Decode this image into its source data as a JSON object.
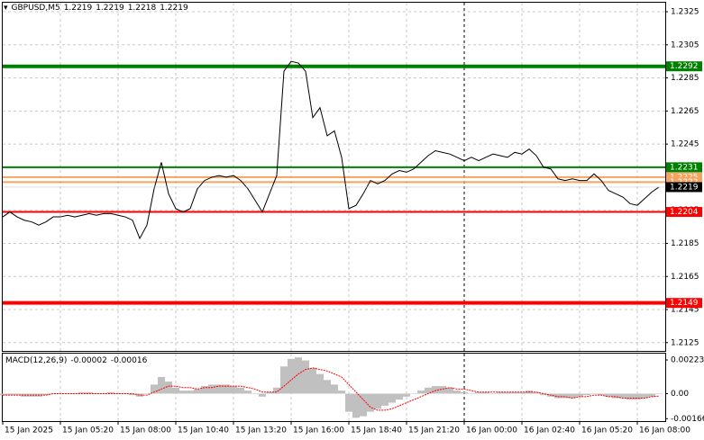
{
  "chart_data": [
    {
      "type": "line",
      "title": "GBPUSD,M5",
      "ohlc": [
        1.2219,
        1.2219,
        1.2218,
        1.2219
      ],
      "color": "#000000",
      "categories": [
        "15 Jan 2025",
        null,
        null,
        null,
        null,
        null,
        null,
        null,
        "15 Jan 05:20",
        null,
        null,
        null,
        null,
        null,
        null,
        null,
        "15 Jan 08:00",
        null,
        null,
        null,
        null,
        null,
        null,
        null,
        "15 Jan 10:40",
        null,
        null,
        null,
        null,
        null,
        null,
        null,
        "15 Jan 13:20",
        null,
        null,
        null,
        null,
        null,
        null,
        null,
        "15 Jan 16:00",
        null,
        null,
        null,
        null,
        null,
        null,
        null,
        "15 Jan 18:40",
        null,
        null,
        null,
        null,
        null,
        null,
        null,
        "15 Jan 21:20",
        null,
        null,
        null,
        null,
        null,
        null,
        null,
        "16 Jan 00:00",
        null,
        null,
        null,
        null,
        null,
        null,
        null,
        "16 Jan 02:40",
        null,
        null,
        null,
        null,
        null,
        null,
        null,
        "16 Jan 05:20",
        null,
        null,
        null,
        null,
        null,
        null,
        null,
        "16 Jan 08:00",
        null,
        null,
        null
      ],
      "values": [
        1.2201,
        1.2204,
        1.2201,
        1.2199,
        1.2198,
        1.2196,
        1.2198,
        1.2201,
        1.2201,
        1.2202,
        1.2201,
        1.2202,
        1.2203,
        1.2202,
        1.2203,
        1.2203,
        1.2202,
        1.2201,
        1.2199,
        1.2188,
        1.2196,
        1.2218,
        1.2234,
        1.2215,
        1.2206,
        1.2204,
        1.2206,
        1.2218,
        1.2223,
        1.2225,
        1.2226,
        1.2225,
        1.2226,
        1.2223,
        1.2218,
        1.2211,
        1.2204,
        1.2215,
        1.2226,
        1.2289,
        1.2295,
        1.2294,
        1.2289,
        1.2261,
        1.2267,
        1.225,
        1.2253,
        1.2237,
        1.2206,
        1.2208,
        1.2215,
        1.2223,
        1.2221,
        1.2223,
        1.2227,
        1.2229,
        1.2228,
        1.223,
        1.2234,
        1.2238,
        1.2241,
        1.224,
        1.2239,
        1.2237,
        1.2235,
        1.2237,
        1.2235,
        1.2237,
        1.2239,
        1.2238,
        1.2237,
        1.224,
        1.2239,
        1.2242,
        1.2238,
        1.2231,
        1.223,
        1.2224,
        1.2223,
        1.2224,
        1.2223,
        1.2223,
        1.2227,
        1.2223,
        1.2217,
        1.2215,
        1.2213,
        1.2209,
        1.2208,
        1.2212,
        1.2216,
        1.2219
      ],
      "ylim": [
        1.212,
        1.2331
      ],
      "yticks": [
        1.2325,
        1.2305,
        1.2285,
        1.2265,
        1.2245,
        1.2225,
        1.2205,
        1.2185,
        1.2165,
        1.2145,
        1.2125
      ],
      "grid": true,
      "period_separators": true,
      "levels": [
        {
          "value": 1.2292,
          "color": "#008000"
        },
        {
          "value": 1.2231,
          "color": "#008000"
        },
        {
          "value": 1.2225,
          "color": "#f4a460"
        },
        {
          "value": 1.2222,
          "color": "#f4a460"
        },
        {
          "value": 1.2204,
          "color": "#ff0000"
        },
        {
          "value": 1.2149,
          "color": "#ff0000"
        }
      ],
      "last_price": 1.2219
    },
    {
      "type": "macd",
      "title": "MACD(12,26,9)",
      "readout": [
        -2e-05,
        -0.00016
      ],
      "histogram_color": "#c0c0c0",
      "signal_color": "#ff0000",
      "histogram": [
        -0.0001,
        -0.0001,
        -0.0001,
        -0.0002,
        -0.0002,
        -0.0002,
        -0.0001,
        0,
        0,
        0,
        0,
        0.0001,
        0.0001,
        0,
        0,
        0.0001,
        0,
        0,
        -0.0001,
        -0.0002,
        0,
        0.0006,
        0.0011,
        0.0008,
        0.0004,
        0.0002,
        0.0002,
        0.0003,
        0.0005,
        0.0006,
        0.0006,
        0.0006,
        0.0005,
        0.0004,
        0.0002,
        0,
        -0.0002,
        0.0001,
        0.0004,
        0.0018,
        0.0023,
        0.0024,
        0.0022,
        0.0017,
        0.0013,
        0.0009,
        0.0006,
        0.0002,
        -0.0012,
        -0.0016,
        -0.0015,
        -0.0012,
        -0.001,
        -0.0008,
        -0.0006,
        -0.0004,
        -0.0002,
        0,
        0.0002,
        0.0004,
        0.0005,
        0.0005,
        0.0004,
        0.0002,
        0.0001,
        0,
        0.0001,
        0.0001,
        0,
        0.0001,
        0.0001,
        0.0001,
        0.0001,
        0.0002,
        0.0001,
        -0.0001,
        -0.0002,
        -0.0003,
        -0.0003,
        -0.0003,
        -0.0002,
        -0.0001,
        0,
        -0.0001,
        -0.0002,
        -0.0003,
        -0.0003,
        -0.0004,
        -0.0004,
        -0.0003,
        -0.0002,
        -2e-05
      ],
      "signal": [
        -0.0001,
        -0.0001,
        -0.0001,
        -0.0001,
        -0.0001,
        -0.0001,
        -0.0001,
        0,
        0,
        0,
        0,
        0,
        0,
        0,
        0,
        0,
        0,
        0,
        0,
        -0.0001,
        -0.0001,
        0.0001,
        0.0003,
        0.0005,
        0.0005,
        0.0004,
        0.0004,
        0.0003,
        0.0004,
        0.0004,
        0.0005,
        0.0005,
        0.0005,
        0.0005,
        0.0004,
        0.0003,
        0.0001,
        0.0001,
        0.0001,
        0.0005,
        0.0009,
        0.0013,
        0.0016,
        0.0017,
        0.0016,
        0.0015,
        0.0013,
        0.0011,
        0.0006,
        0.0001,
        -0.0004,
        -0.0009,
        -0.0011,
        -0.0011,
        -0.001,
        -0.0008,
        -0.0006,
        -0.0004,
        -0.0002,
        0,
        0.0002,
        0.0003,
        0.0004,
        0.0003,
        0.0003,
        0.0002,
        0.0001,
        0.0001,
        0.0001,
        0.0001,
        0.0001,
        0.0001,
        0.0001,
        0.0001,
        0.0001,
        0,
        -0.0001,
        -0.0002,
        -0.0002,
        -0.0003,
        -0.0002,
        -0.0002,
        -0.0001,
        -0.0001,
        -0.0002,
        -0.0002,
        -0.0003,
        -0.0003,
        -0.0003,
        -0.0003,
        -0.0002,
        -0.00016
      ],
      "ylim": [
        -0.00182,
        0.00265
      ],
      "yticks": [
        0.00223,
        {
          "value": 0,
          "label": "0.00"
        },
        -0.00166
      ]
    }
  ]
}
